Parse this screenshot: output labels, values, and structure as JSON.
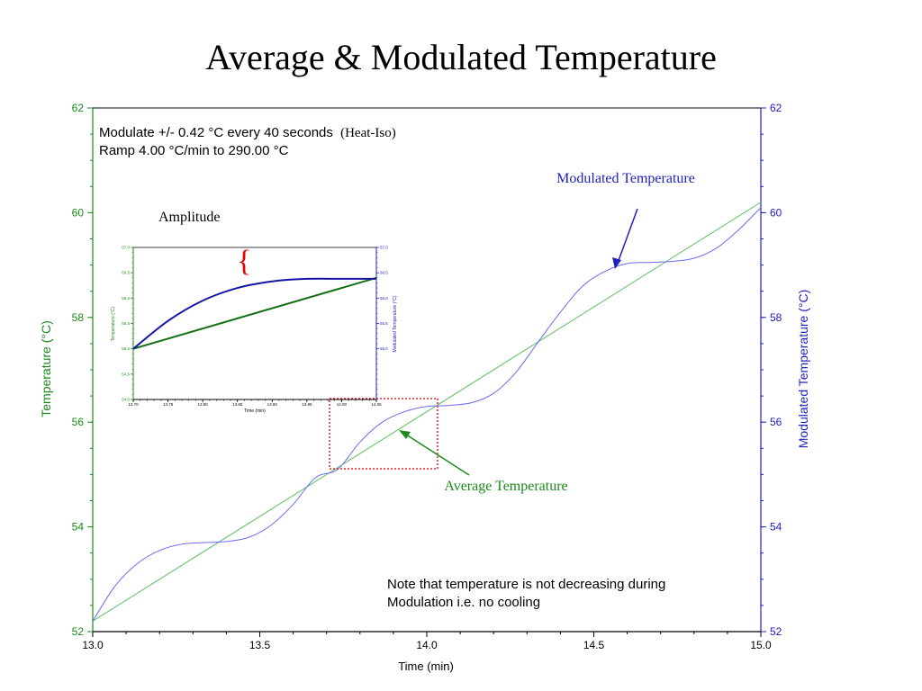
{
  "slide": {
    "title": "Average & Modulated Temperature",
    "method_line1": "Modulate +/- 0.42 °C every 40 seconds",
    "method_suffix": "(Heat-Iso)",
    "method_line2": "Ramp 4.00 °C/min to 290.00 °C",
    "note_line1": "Note that temperature is not decreasing during",
    "note_line2": "Modulation i.e. no cooling"
  },
  "colors": {
    "average": "#1a8a1a",
    "average_line": "#5cbf5c",
    "modulated": "#2020c0",
    "modulated_line": "#6a6af0",
    "zoom_box": "#e02020",
    "brace": "#e00000"
  },
  "chart_data": [
    {
      "type": "line",
      "title": "",
      "xlabel": "Time (min)",
      "ylabel_left": "Temperature (°C)",
      "ylabel_right": "Modulated Temperature (°C)",
      "xlim": [
        13.0,
        15.0
      ],
      "ylim_left": [
        52,
        62
      ],
      "ylim_right": [
        52,
        62
      ],
      "x_ticks": [
        "13.0",
        "13.5",
        "14.0",
        "14.5",
        "15.0"
      ],
      "y_ticks_left": [
        "52",
        "54",
        "56",
        "58",
        "60",
        "62"
      ],
      "y_ticks_right": [
        "52",
        "54",
        "56",
        "58",
        "60",
        "62"
      ],
      "grid": false,
      "ramp_c_per_min": 4.0,
      "amplitude_c": 0.42,
      "period_s": 40,
      "series": [
        {
          "name": "Average Temperature",
          "axis": "left",
          "x": [
            13.0,
            15.0
          ],
          "y": [
            52.2,
            60.2
          ]
        },
        {
          "name": "Modulated Temperature",
          "axis": "right",
          "x": [
            13.0,
            13.0667,
            13.1333,
            13.2,
            13.2667,
            13.3333,
            13.4,
            13.4667,
            13.5333,
            13.6,
            13.6667,
            13.7333,
            13.8,
            13.8667,
            13.9333,
            14.0,
            14.0667,
            14.1333,
            14.2,
            14.2667,
            14.3333,
            14.4,
            14.4667,
            14.5333,
            14.6,
            14.6667,
            14.7333,
            14.8,
            14.8667,
            14.9333,
            15.0
          ],
          "y": [
            52.2,
            52.87,
            53.3,
            53.55,
            53.67,
            53.7,
            53.72,
            53.8,
            54.03,
            54.43,
            54.94,
            55.1,
            55.62,
            56.0,
            56.2,
            56.3,
            56.32,
            56.37,
            56.55,
            56.95,
            57.53,
            58.1,
            58.6,
            58.88,
            59.03,
            59.05,
            59.07,
            59.13,
            59.32,
            59.67,
            60.1
          ]
        }
      ],
      "annotations": [
        "Modulated Temperature",
        "Average Temperature",
        "Amplitude"
      ]
    },
    {
      "type": "line",
      "title": "",
      "xlabel": "Time (min)",
      "ylabel_left": "Temperature (°C)",
      "ylabel_right": "Modulated Temperature (°C)",
      "xlim": [
        13.7,
        14.05
      ],
      "ylim": [
        54.0,
        57.0
      ],
      "x_ticks": [
        "13.70",
        "13.75",
        "13.80",
        "13.85",
        "13.90",
        "13.95",
        "14.00",
        "14.05"
      ],
      "y_ticks_left": [
        "54.0",
        "54.5",
        "55.0",
        "55.5",
        "56.0",
        "56.5",
        "57.0"
      ],
      "y_ticks_right": [
        "55.0",
        "55.5",
        "56.0",
        "56.5",
        "57.0"
      ],
      "grid": false,
      "series": [
        {
          "name": "Average Temperature",
          "axis": "left",
          "x": [
            13.7,
            14.05
          ],
          "y": [
            55.0,
            56.4
          ]
        },
        {
          "name": "Modulated Temperature",
          "axis": "right",
          "x": [
            13.7,
            13.75,
            13.8,
            13.85,
            13.9,
            13.95,
            14.0,
            14.05
          ],
          "y": [
            55.0,
            55.55,
            55.95,
            56.2,
            56.33,
            56.38,
            56.38,
            56.38
          ]
        }
      ]
    }
  ]
}
